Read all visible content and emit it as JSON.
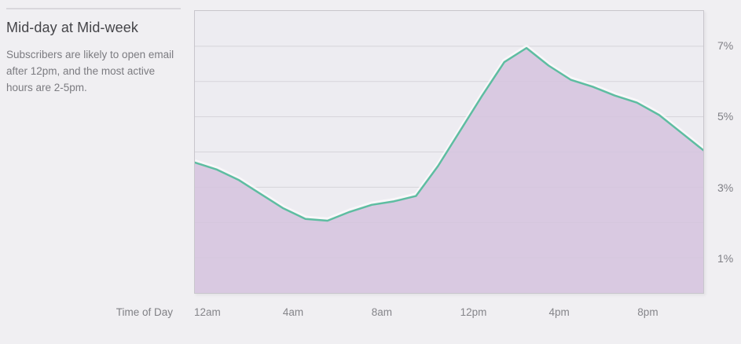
{
  "panel": {
    "title": "Mid-day at Mid-week",
    "description_lines": [
      "Subscribers are likely to open email",
      "after 12pm, and the most active",
      "hours are 2-5pm."
    ]
  },
  "chart_data": {
    "type": "area",
    "title": "Mid-day at Mid-week",
    "subtitle": "Subscribers are likely to open email after 12pm, and the most active hours are 2-5pm.",
    "xlabel": "Time of Day",
    "ylabel": "",
    "unit": "%",
    "x": [
      "12am",
      "1am",
      "2am",
      "3am",
      "4am",
      "5am",
      "6am",
      "7am",
      "8am",
      "9am",
      "10am",
      "11am",
      "12pm",
      "1pm",
      "2pm",
      "3pm",
      "4pm",
      "5pm",
      "6pm",
      "7pm",
      "8pm",
      "9pm",
      "10pm",
      "11pm"
    ],
    "values": [
      3.7,
      3.5,
      3.2,
      2.8,
      2.4,
      2.1,
      2.05,
      2.3,
      2.5,
      2.6,
      2.75,
      3.6,
      4.6,
      5.6,
      6.55,
      6.95,
      6.45,
      6.05,
      5.85,
      5.6,
      5.4,
      5.05,
      4.55,
      4.05
    ],
    "ylim": [
      0,
      8
    ],
    "grid": "horizontal every 1%",
    "legend": "none",
    "x_ticks": [
      {
        "label": "12am",
        "index": 0
      },
      {
        "label": "4am",
        "index": 4
      },
      {
        "label": "8am",
        "index": 8
      },
      {
        "label": "12pm",
        "index": 12
      },
      {
        "label": "4pm",
        "index": 16
      },
      {
        "label": "8pm",
        "index": 20
      }
    ],
    "y_ticks": [
      {
        "label": "7%",
        "value": 7
      },
      {
        "label": "5%",
        "value": 5
      },
      {
        "label": "3%",
        "value": 3
      },
      {
        "label": "1%",
        "value": 1
      }
    ],
    "colors": {
      "line": "#5ebda1",
      "glow": "#ffffff",
      "fill": "#d5c3de",
      "plot_bg": "#edecf1",
      "page_bg": "#f0eff2",
      "grid": "#d6d4da",
      "border": "#c8c6cc",
      "title_text": "#454549",
      "body_text": "#7b7b80",
      "tick_text": "#85858a"
    }
  }
}
